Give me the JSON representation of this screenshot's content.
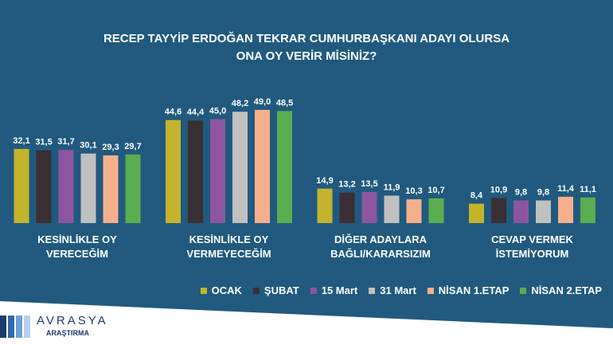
{
  "chart_data": {
    "type": "bar",
    "title": "RECEP TAYYİP ERDOĞAN TEKRAR CUMHURBAŞKANI ADAYI OLURSA ONA OY VERİR MİSİNİZ?",
    "categories": [
      "KESİNLİKLE OY VERECEĞİM",
      "KESİNLİKLE OY VERMEYECEĞİM",
      "DİĞER ADAYLARA BAĞLI/KARARSIZIM",
      "CEVAP VERMEK İSTEMİYORUM"
    ],
    "series": [
      {
        "name": "OCAK",
        "color": "#c4b42c",
        "values": [
          32.1,
          44.6,
          14.9,
          8.4
        ],
        "value_labels": [
          "32,1",
          "44,6",
          "14,9",
          "8,4"
        ]
      },
      {
        "name": "ŞUBAT",
        "color": "#3a2f34",
        "values": [
          31.5,
          44.4,
          13.2,
          10.9
        ],
        "value_labels": [
          "31,5",
          "44,4",
          "13,2",
          "10,9"
        ]
      },
      {
        "name": "15 Mart",
        "color": "#8d55a0",
        "values": [
          31.7,
          45.0,
          13.5,
          9.8
        ],
        "value_labels": [
          "31,7",
          "45,0",
          "13,5",
          "9,8"
        ]
      },
      {
        "name": "31 Mart",
        "color": "#c0c0c0",
        "values": [
          30.1,
          48.2,
          11.9,
          9.8
        ],
        "value_labels": [
          "30,1",
          "48,2",
          "11,9",
          "9,8"
        ]
      },
      {
        "name": "NİSAN 1.ETAP",
        "color": "#f5b08b",
        "values": [
          29.3,
          49.0,
          10.3,
          11.4
        ],
        "value_labels": [
          "29,3",
          "49,0",
          "10,3",
          "11,4"
        ]
      },
      {
        "name": "NİSAN 2.ETAP",
        "color": "#5bae4f",
        "values": [
          29.7,
          48.5,
          10.7,
          11.1
        ],
        "value_labels": [
          "29,7",
          "48,5",
          "10,7",
          "11,1"
        ]
      }
    ]
  },
  "logo": {
    "name": "AVRASYA",
    "subtitle": "ARAŞTIRMA"
  }
}
